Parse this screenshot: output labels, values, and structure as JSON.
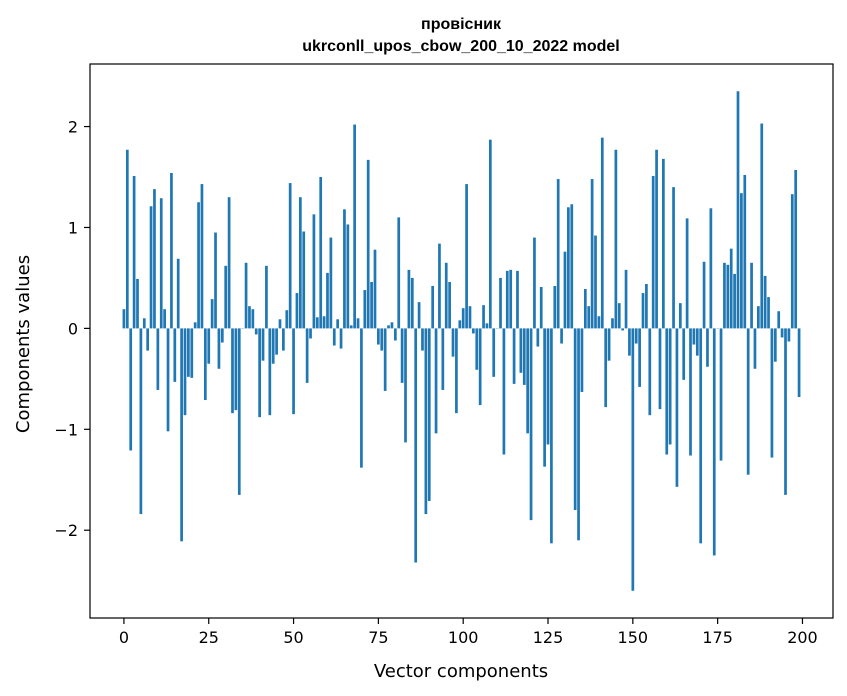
{
  "chart_data": {
    "type": "bar",
    "title": [
      "провісник",
      "ukrconll_upos_cbow_200_10_2022 model"
    ],
    "xlabel": "Vector components",
    "ylabel": "Components values",
    "xlim": [
      -10,
      209
    ],
    "ylim": [
      -2.87,
      2.62
    ],
    "xticks": [
      0,
      25,
      50,
      75,
      100,
      125,
      150,
      175,
      200
    ],
    "yticks": [
      -2,
      -1,
      0,
      1,
      2
    ],
    "ytick_labels": [
      "−2",
      "−1",
      "0",
      "1",
      "2"
    ],
    "grid": false,
    "bar_color": "#1f77b4",
    "x": [
      0,
      1,
      2,
      3,
      4,
      5,
      6,
      7,
      8,
      9,
      10,
      11,
      12,
      13,
      14,
      15,
      16,
      17,
      18,
      19,
      20,
      21,
      22,
      23,
      24,
      25,
      26,
      27,
      28,
      29,
      30,
      31,
      32,
      33,
      34,
      35,
      36,
      37,
      38,
      39,
      40,
      41,
      42,
      43,
      44,
      45,
      46,
      47,
      48,
      49,
      50,
      51,
      52,
      53,
      54,
      55,
      56,
      57,
      58,
      59,
      60,
      61,
      62,
      63,
      64,
      65,
      66,
      67,
      68,
      69,
      70,
      71,
      72,
      73,
      74,
      75,
      76,
      77,
      78,
      79,
      80,
      81,
      82,
      83,
      84,
      85,
      86,
      87,
      88,
      89,
      90,
      91,
      92,
      93,
      94,
      95,
      96,
      97,
      98,
      99,
      100,
      101,
      102,
      103,
      104,
      105,
      106,
      107,
      108,
      109,
      110,
      111,
      112,
      113,
      114,
      115,
      116,
      117,
      118,
      119,
      120,
      121,
      122,
      123,
      124,
      125,
      126,
      127,
      128,
      129,
      130,
      131,
      132,
      133,
      134,
      135,
      136,
      137,
      138,
      139,
      140,
      141,
      142,
      143,
      144,
      145,
      146,
      147,
      148,
      149,
      150,
      151,
      152,
      153,
      154,
      155,
      156,
      157,
      158,
      159,
      160,
      161,
      162,
      163,
      164,
      165,
      166,
      167,
      168,
      169,
      170,
      171,
      172,
      173,
      174,
      175,
      176,
      177,
      178,
      179,
      180,
      181,
      182,
      183,
      184,
      185,
      186,
      187,
      188,
      189,
      190,
      191,
      192,
      193,
      194,
      195,
      196,
      197,
      198,
      199
    ],
    "values": [
      0.19,
      1.77,
      -1.21,
      1.51,
      0.49,
      -1.84,
      0.1,
      -0.22,
      1.21,
      1.38,
      -0.61,
      1.29,
      0.19,
      -1.02,
      1.54,
      -0.53,
      0.69,
      -2.11,
      -0.86,
      -0.48,
      -0.49,
      0.06,
      1.25,
      1.43,
      -0.71,
      -0.35,
      0.29,
      0.95,
      -0.4,
      -0.14,
      0.62,
      1.3,
      -0.84,
      -0.81,
      -1.65,
      0.0,
      0.65,
      0.22,
      0.19,
      -0.06,
      -0.88,
      -0.32,
      0.62,
      -0.86,
      -0.35,
      -0.26,
      0.09,
      -0.22,
      0.18,
      1.44,
      -0.85,
      0.35,
      1.3,
      0.96,
      -0.54,
      -0.1,
      1.13,
      0.11,
      1.5,
      0.12,
      0.55,
      0.9,
      -0.17,
      0.09,
      -0.2,
      1.18,
      1.03,
      0.03,
      2.02,
      0.1,
      -1.38,
      0.38,
      1.67,
      0.46,
      0.78,
      -0.16,
      -0.22,
      -0.62,
      0.03,
      0.06,
      -0.12,
      1.1,
      -0.54,
      -1.13,
      0.58,
      0.5,
      -2.32,
      0.26,
      -0.22,
      -1.84,
      -1.71,
      0.42,
      -1.04,
      0.84,
      -0.61,
      0.65,
      0.46,
      -0.28,
      -0.84,
      0.08,
      0.2,
      1.43,
      0.22,
      -0.05,
      -0.41,
      -0.76,
      0.23,
      0.05,
      1.87,
      -0.48,
      0.0,
      0.5,
      -1.25,
      0.57,
      0.58,
      -0.55,
      0.57,
      -0.44,
      -0.56,
      -1.04,
      -1.9,
      0.9,
      -0.18,
      0.41,
      -1.37,
      -1.15,
      -2.13,
      0.42,
      1.48,
      -0.15,
      0.76,
      1.2,
      1.23,
      -1.8,
      -2.1,
      -0.63,
      0.39,
      0.22,
      1.48,
      0.92,
      0.12,
      1.89,
      -0.78,
      -0.32,
      0.1,
      1.77,
      0.25,
      -0.02,
      0.58,
      -0.27,
      -2.6,
      -0.15,
      -0.58,
      0.35,
      0.44,
      -0.86,
      1.51,
      1.77,
      -0.8,
      1.68,
      -1.25,
      -1.15,
      1.4,
      -1.57,
      0.25,
      -0.51,
      1.09,
      -1.26,
      -0.16,
      -0.27,
      -2.13,
      0.66,
      -0.38,
      1.19,
      -2.25,
      0.0,
      -1.31,
      0.65,
      0.63,
      0.79,
      0.54,
      2.35,
      1.34,
      1.52,
      -1.45,
      0.65,
      -0.4,
      0.22,
      2.03,
      0.52,
      0.31,
      -1.28,
      -0.33,
      0.17,
      -0.09,
      -1.65,
      -0.13,
      1.33,
      1.57,
      -0.68
    ]
  }
}
